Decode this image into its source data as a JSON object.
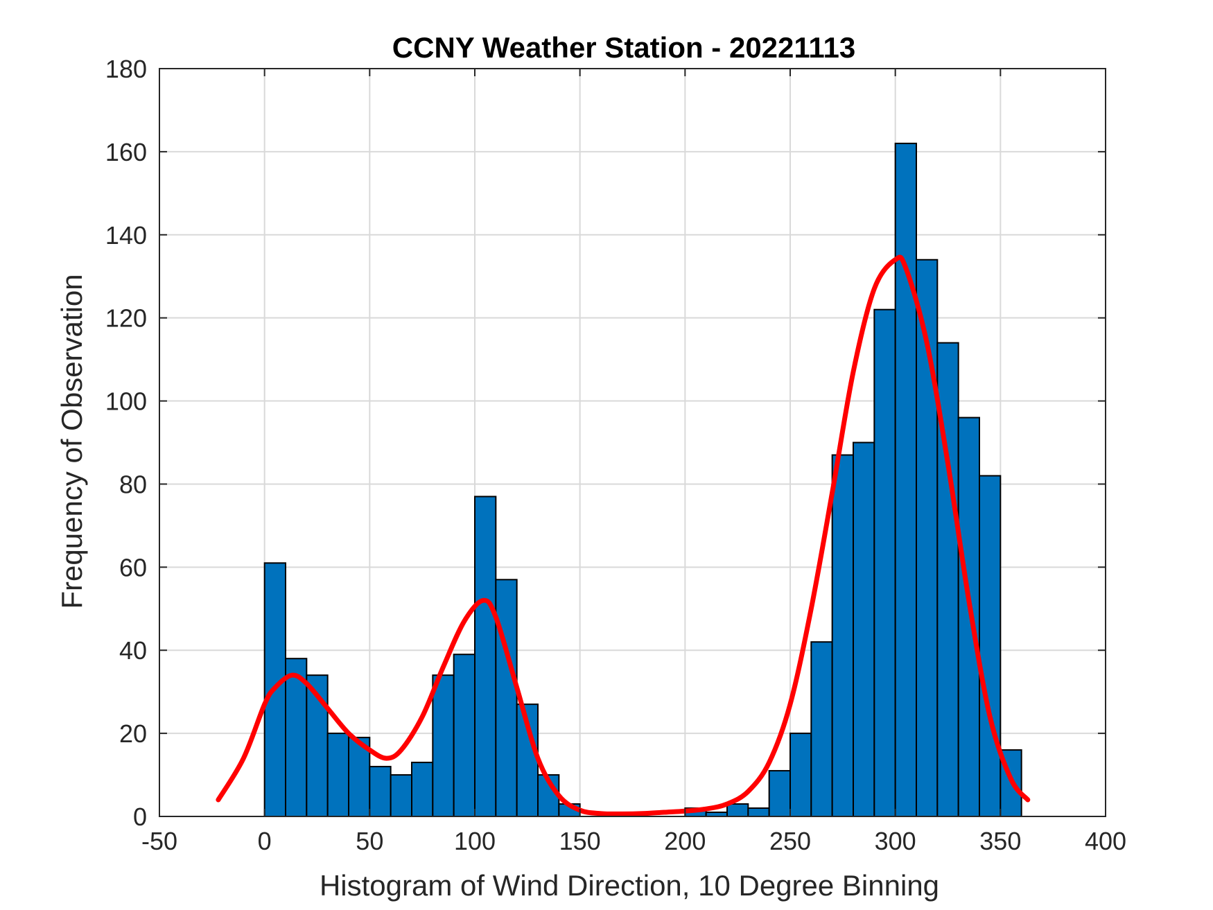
{
  "chart_data": {
    "type": "bar",
    "title": "CCNY Weather Station - 20221113",
    "xlabel": "Histogram of Wind Direction, 10 Degree Binning",
    "ylabel": "Frequency of Observation",
    "xlim": [
      -50,
      400
    ],
    "ylim": [
      0,
      180
    ],
    "xticks": [
      -50,
      0,
      50,
      100,
      150,
      200,
      250,
      300,
      350,
      400
    ],
    "yticks": [
      0,
      20,
      40,
      60,
      80,
      100,
      120,
      140,
      160,
      180
    ],
    "grid": true,
    "bin_width": 10,
    "bin_edges": [
      0,
      10,
      20,
      30,
      40,
      50,
      60,
      70,
      80,
      90,
      100,
      110,
      120,
      130,
      140,
      150,
      160,
      170,
      180,
      190,
      200,
      210,
      220,
      230,
      240,
      250,
      260,
      270,
      280,
      290,
      300,
      310,
      320,
      330,
      340,
      350
    ],
    "values": [
      61,
      38,
      34,
      20,
      19,
      12,
      10,
      13,
      34,
      39,
      77,
      57,
      27,
      10,
      3,
      0,
      0,
      0,
      0,
      0,
      2,
      1,
      3,
      2,
      11,
      20,
      42,
      87,
      90,
      122,
      162,
      134,
      114,
      96,
      82,
      16
    ],
    "fit_curve": {
      "name": "fit",
      "x": [
        -22,
        -10,
        0,
        5,
        13,
        20,
        30,
        40,
        50,
        58,
        65,
        75,
        85,
        95,
        104,
        110,
        120,
        130,
        140,
        150,
        160,
        170,
        180,
        190,
        200,
        210,
        220,
        230,
        240,
        250,
        260,
        270,
        280,
        290,
        300,
        305,
        315,
        325,
        335,
        345,
        355,
        363
      ],
      "y": [
        4,
        14,
        27,
        31,
        34,
        32,
        26,
        20,
        16,
        14,
        16,
        24,
        36,
        47,
        52,
        48,
        31,
        14,
        5,
        1.5,
        0.7,
        0.6,
        0.7,
        1,
        1.3,
        1.8,
        3,
        6,
        13,
        27,
        50,
        78,
        107,
        127,
        134,
        132,
        114,
        85,
        52,
        24,
        9,
        4
      ],
      "color": "#ff0000"
    },
    "bar_color": "#0072bd",
    "bar_edge_color": "#000000"
  }
}
